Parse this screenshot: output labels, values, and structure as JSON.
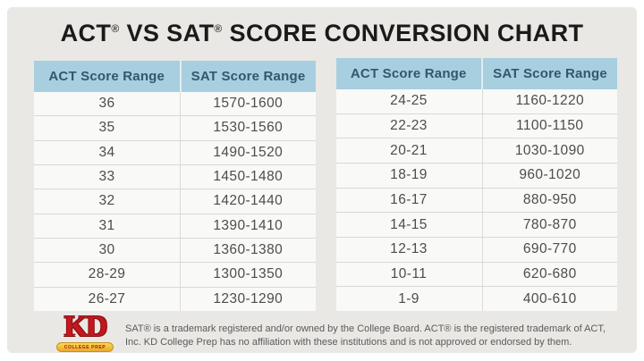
{
  "title": {
    "parts": [
      "ACT",
      "®",
      " VS SAT",
      "®",
      " SCORE CONVERSION CHART"
    ]
  },
  "chart_data": [
    {
      "type": "table",
      "panel": "left",
      "columns": [
        "ACT Score Range",
        "SAT Score Range"
      ],
      "rows": [
        [
          "36",
          "1570-1600"
        ],
        [
          "35",
          "1530-1560"
        ],
        [
          "34",
          "1490-1520"
        ],
        [
          "33",
          "1450-1480"
        ],
        [
          "32",
          "1420-1440"
        ],
        [
          "31",
          "1390-1410"
        ],
        [
          "30",
          "1360-1380"
        ],
        [
          "28-29",
          "1300-1350"
        ],
        [
          "26-27",
          "1230-1290"
        ]
      ]
    },
    {
      "type": "table",
      "panel": "right",
      "columns": [
        "ACT Score Range",
        "SAT Score Range"
      ],
      "rows": [
        [
          "24-25",
          "1160-1220"
        ],
        [
          "22-23",
          "1100-1150"
        ],
        [
          "20-21",
          "1030-1090"
        ],
        [
          "18-19",
          "960-1020"
        ],
        [
          "16-17",
          "880-950"
        ],
        [
          "14-15",
          "780-870"
        ],
        [
          "12-13",
          "690-770"
        ],
        [
          "10-11",
          "620-680"
        ],
        [
          "1-9",
          "400-610"
        ]
      ]
    }
  ],
  "footer": {
    "logo_text": "KD",
    "logo_banner": "COLLEGE PREP",
    "disclaimer_line1": "SAT® is a trademark registered and/or owned by the College Board. ACT® is the registered trademark of ACT,",
    "disclaimer_line2": "Inc. KD College Prep has no affiliation with these institutions and is not approved or endorsed by them."
  },
  "colors": {
    "page_background": "#e9e8e5",
    "header_fill": "#a7cfe0",
    "header_text": "#33586c",
    "row_fill": "#f9f9f8",
    "row_border": "#d9d8d5",
    "cell_text": "#4c4c4c",
    "title_text": "#1a1a1a",
    "logo_red": "#c4171e",
    "banner_gold": "#f0b42f",
    "disclaimer_text": "#5a5a5a"
  }
}
